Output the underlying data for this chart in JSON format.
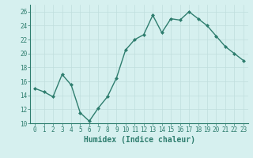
{
  "x": [
    0,
    1,
    2,
    3,
    4,
    5,
    6,
    7,
    8,
    9,
    10,
    11,
    12,
    13,
    14,
    15,
    16,
    17,
    18,
    19,
    20,
    21,
    22,
    23
  ],
  "y": [
    15.0,
    14.5,
    13.8,
    17.0,
    15.5,
    11.5,
    10.3,
    12.2,
    13.8,
    16.5,
    20.5,
    22.0,
    22.7,
    25.5,
    23.0,
    25.0,
    24.8,
    26.0,
    25.0,
    24.0,
    22.5,
    21.0,
    20.0,
    19.0
  ],
  "line_color": "#2e7d6e",
  "marker": "D",
  "marker_size": 2.0,
  "bg_color": "#d6f0ef",
  "grid_color": "#c0dedd",
  "xlabel": "Humidex (Indice chaleur)",
  "ylim": [
    10,
    27
  ],
  "xlim": [
    -0.5,
    23.5
  ],
  "yticks": [
    10,
    12,
    14,
    16,
    18,
    20,
    22,
    24,
    26
  ],
  "xticks": [
    0,
    1,
    2,
    3,
    4,
    5,
    6,
    7,
    8,
    9,
    10,
    11,
    12,
    13,
    14,
    15,
    16,
    17,
    18,
    19,
    20,
    21,
    22,
    23
  ],
  "line_width": 1.0,
  "xlabel_fontsize": 7.0,
  "tick_fontsize": 5.5,
  "grid_linewidth": 0.5
}
